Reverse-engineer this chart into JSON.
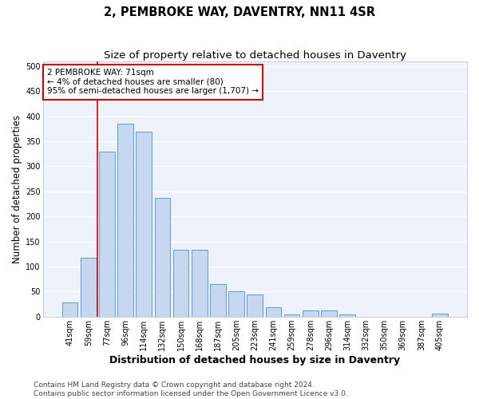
{
  "title": "2, PEMBROKE WAY, DAVENTRY, NN11 4SR",
  "subtitle": "Size of property relative to detached houses in Daventry",
  "xlabel": "Distribution of detached houses by size in Daventry",
  "ylabel": "Number of detached properties",
  "categories": [
    "41sqm",
    "59sqm",
    "77sqm",
    "96sqm",
    "114sqm",
    "132sqm",
    "150sqm",
    "168sqm",
    "187sqm",
    "205sqm",
    "223sqm",
    "241sqm",
    "259sqm",
    "278sqm",
    "296sqm",
    "314sqm",
    "332sqm",
    "350sqm",
    "369sqm",
    "387sqm",
    "405sqm"
  ],
  "values": [
    28,
    118,
    330,
    385,
    370,
    237,
    133,
    133,
    65,
    51,
    45,
    18,
    5,
    13,
    13,
    5,
    0,
    0,
    0,
    0,
    6
  ],
  "bar_color": "#c5d8f0",
  "bar_edge_color": "#5b9bd5",
  "vline_x_index": 2,
  "vline_color": "#cc0000",
  "annotation_text": "2 PEMBROKE WAY: 71sqm\n← 4% of detached houses are smaller (80)\n95% of semi-detached houses are larger (1,707) →",
  "annotation_box_color": "#ffffff",
  "annotation_box_edge_color": "#cc0000",
  "ylim": [
    0,
    510
  ],
  "yticks": [
    0,
    50,
    100,
    150,
    200,
    250,
    300,
    350,
    400,
    450,
    500
  ],
  "footer_line1": "Contains HM Land Registry data © Crown copyright and database right 2024.",
  "footer_line2": "Contains public sector information licensed under the Open Government Licence v3.0.",
  "bg_color": "#eef2fb",
  "grid_color": "#ffffff",
  "title_fontsize": 10.5,
  "subtitle_fontsize": 9.5,
  "xlabel_fontsize": 9,
  "ylabel_fontsize": 8.5,
  "tick_fontsize": 7,
  "footer_fontsize": 6.5,
  "annotation_fontsize": 7.5
}
